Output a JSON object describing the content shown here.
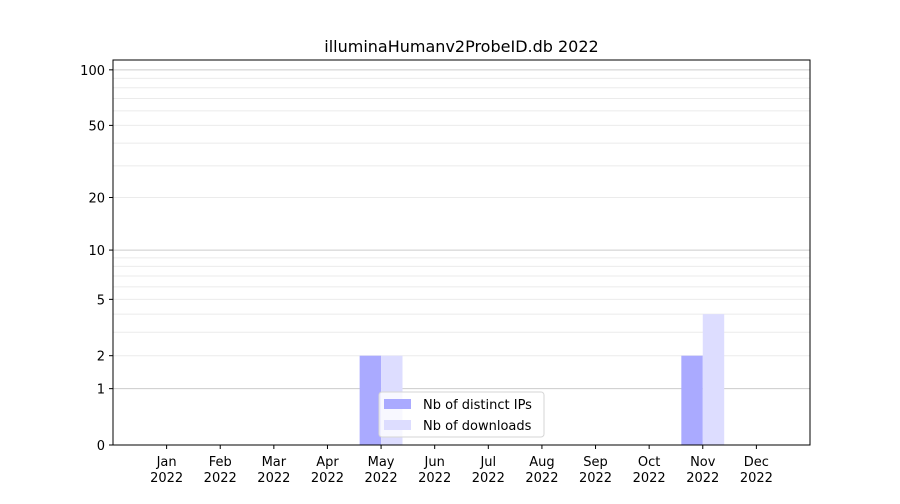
{
  "chart_data": {
    "type": "bar",
    "title": "illuminaHumanv2ProbeID.db 2022",
    "xlabel": "",
    "ylabel": "",
    "yscale": "log(1+y)",
    "ylim": [
      0,
      113
    ],
    "yticks": [
      0,
      1,
      2,
      5,
      10,
      20,
      50,
      100
    ],
    "grid": true,
    "legend_position": "lower-center",
    "categories": [
      "Jan\n2022",
      "Feb\n2022",
      "Mar\n2022",
      "Apr\n2022",
      "May\n2022",
      "Jun\n2022",
      "Jul\n2022",
      "Aug\n2022",
      "Sep\n2022",
      "Oct\n2022",
      "Nov\n2022",
      "Dec\n2022"
    ],
    "series": [
      {
        "name": "Nb of distinct IPs",
        "color": "#aaaaff",
        "values": [
          0,
          0,
          0,
          0,
          2,
          0,
          0,
          0,
          0,
          0,
          2,
          0
        ]
      },
      {
        "name": "Nb of downloads",
        "color": "#ddddff",
        "values": [
          0,
          0,
          0,
          0,
          2,
          0,
          0,
          0,
          0,
          0,
          4,
          0
        ]
      }
    ]
  }
}
